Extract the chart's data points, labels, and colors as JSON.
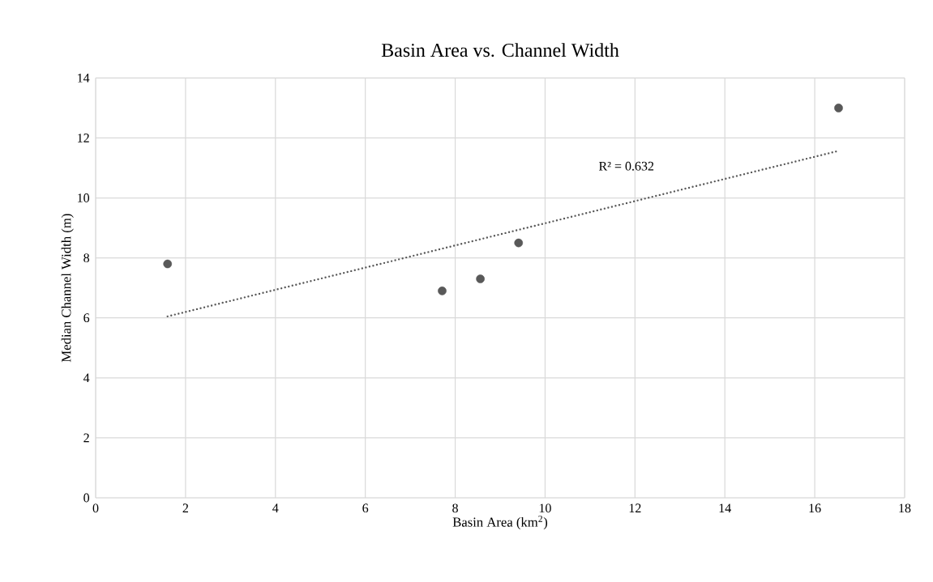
{
  "chart_data": {
    "type": "scatter",
    "title": "Basin Area vs. Channel Width",
    "xlabel": "Basin Area (km$^{2}$)",
    "ylabel": "Median Channel Width (m)",
    "series": [
      {
        "color": "#595959",
        "marker": "circle",
        "x": [
          1.6,
          7.71,
          8.56,
          9.41,
          16.53
        ],
        "values": [
          7.8,
          6.9,
          7.3,
          8.5,
          13.0
        ]
      },
      {
        "type": "line",
        "color": "#595959",
        "marker": "none",
        "line_style": "dotted",
        "x": [
          1.6,
          16.53
        ],
        "values": [
          6.05,
          11.57
        ]
      }
    ],
    "annotations": [
      "R² = 0.632"
    ],
    "xlim": [
      0,
      18
    ],
    "xticks": [
      0,
      2,
      4,
      6,
      8,
      10,
      12,
      14,
      16,
      18
    ],
    "ylim": [
      0,
      14
    ],
    "yticks": [
      0,
      2,
      4,
      6,
      8,
      10,
      12,
      14
    ],
    "grid": true
  }
}
